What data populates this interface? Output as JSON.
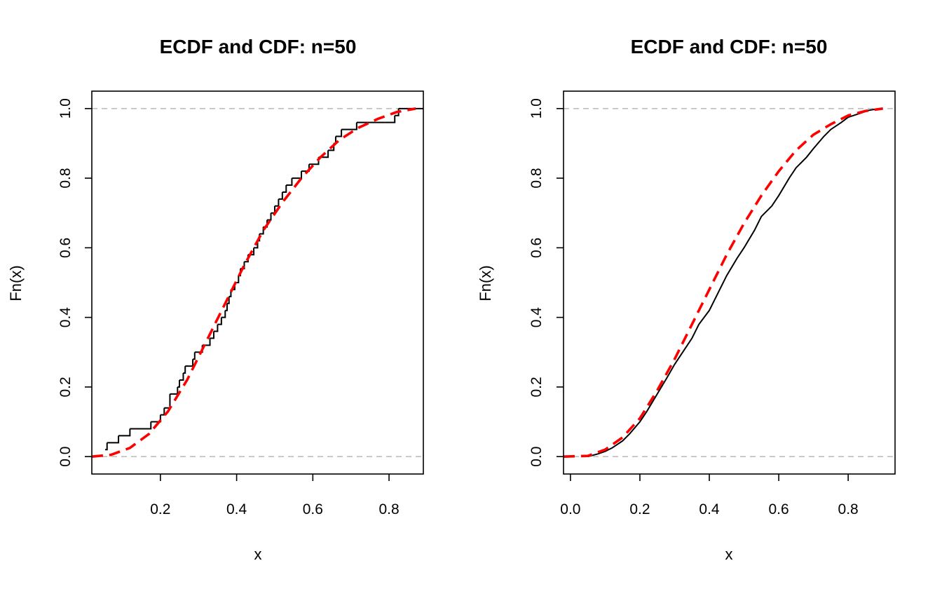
{
  "chart_data": [
    {
      "type": "line",
      "title": "ECDF and CDF: n=50",
      "xlabel": "x",
      "ylabel": "Fn(x)",
      "xlim": [
        0.02,
        0.89
      ],
      "ylim": [
        -0.05,
        1.05
      ],
      "xticks": [
        0.2,
        0.4,
        0.6,
        0.8
      ],
      "xtick_labels": [
        "0.2",
        "0.4",
        "0.6",
        "0.8"
      ],
      "yticks": [
        0.0,
        0.2,
        0.4,
        0.6,
        0.8,
        1.0
      ],
      "ytick_labels": [
        "0.0",
        "0.2",
        "0.4",
        "0.6",
        "0.8",
        "1.0"
      ],
      "reference_lines": [
        0,
        1
      ],
      "series": [
        {
          "kind": "ecdf",
          "color": "#000000",
          "x": [
            0.055,
            0.06,
            0.09,
            0.12,
            0.175,
            0.2,
            0.21,
            0.225,
            0.225,
            0.245,
            0.25,
            0.26,
            0.265,
            0.285,
            0.29,
            0.31,
            0.33,
            0.34,
            0.35,
            0.36,
            0.37,
            0.375,
            0.38,
            0.385,
            0.395,
            0.405,
            0.41,
            0.42,
            0.43,
            0.445,
            0.455,
            0.46,
            0.47,
            0.48,
            0.49,
            0.5,
            0.51,
            0.52,
            0.53,
            0.545,
            0.57,
            0.59,
            0.615,
            0.64,
            0.655,
            0.66,
            0.675,
            0.715,
            0.815,
            0.825
          ],
          "y": [
            0.02,
            0.04,
            0.06,
            0.08,
            0.1,
            0.12,
            0.14,
            0.16,
            0.18,
            0.2,
            0.22,
            0.24,
            0.26,
            0.28,
            0.3,
            0.32,
            0.34,
            0.36,
            0.38,
            0.4,
            0.42,
            0.44,
            0.46,
            0.48,
            0.5,
            0.52,
            0.54,
            0.56,
            0.58,
            0.6,
            0.62,
            0.64,
            0.66,
            0.68,
            0.7,
            0.72,
            0.74,
            0.76,
            0.78,
            0.8,
            0.82,
            0.84,
            0.86,
            0.88,
            0.9,
            0.92,
            0.94,
            0.96,
            0.98,
            1.0
          ]
        },
        {
          "kind": "cdf",
          "color": "#ff0000",
          "dash": true,
          "x": [
            0.02,
            0.07,
            0.12,
            0.17,
            0.22,
            0.27,
            0.32,
            0.37,
            0.42,
            0.47,
            0.52,
            0.57,
            0.62,
            0.67,
            0.72,
            0.77,
            0.82,
            0.87
          ],
          "y": [
            0.0,
            0.005,
            0.025,
            0.065,
            0.13,
            0.22,
            0.33,
            0.44,
            0.55,
            0.65,
            0.73,
            0.8,
            0.86,
            0.91,
            0.945,
            0.97,
            0.99,
            1.0
          ]
        }
      ]
    },
    {
      "type": "line",
      "title": "ECDF and CDF: n=50",
      "xlabel": "x",
      "ylabel": "Fn(x)",
      "xlim": [
        -0.02,
        0.935
      ],
      "ylim": [
        -0.05,
        1.05
      ],
      "xticks": [
        0.0,
        0.2,
        0.4,
        0.6,
        0.8
      ],
      "xtick_labels": [
        "0.0",
        "0.2",
        "0.4",
        "0.6",
        "0.8"
      ],
      "yticks": [
        0.0,
        0.2,
        0.4,
        0.6,
        0.8,
        1.0
      ],
      "ytick_labels": [
        "0.0",
        "0.2",
        "0.4",
        "0.6",
        "0.8",
        "1.0"
      ],
      "reference_lines": [
        0,
        1
      ],
      "series": [
        {
          "kind": "ecdf-smooth",
          "color": "#000000",
          "x": [
            0.05,
            0.08,
            0.1,
            0.12,
            0.15,
            0.17,
            0.2,
            0.22,
            0.25,
            0.28,
            0.3,
            0.33,
            0.35,
            0.37,
            0.4,
            0.43,
            0.45,
            0.48,
            0.5,
            0.53,
            0.55,
            0.58,
            0.6,
            0.63,
            0.65,
            0.68,
            0.7,
            0.73,
            0.75,
            0.78,
            0.8,
            0.83,
            0.86,
            0.89
          ],
          "y": [
            0.0,
            0.008,
            0.015,
            0.025,
            0.045,
            0.065,
            0.1,
            0.13,
            0.18,
            0.23,
            0.265,
            0.31,
            0.34,
            0.38,
            0.42,
            0.48,
            0.52,
            0.57,
            0.6,
            0.65,
            0.69,
            0.72,
            0.75,
            0.8,
            0.83,
            0.86,
            0.885,
            0.92,
            0.94,
            0.96,
            0.975,
            0.985,
            0.995,
            1.0
          ]
        },
        {
          "kind": "cdf",
          "color": "#ff0000",
          "dash": true,
          "x": [
            -0.02,
            0.05,
            0.1,
            0.15,
            0.2,
            0.25,
            0.3,
            0.35,
            0.4,
            0.45,
            0.5,
            0.55,
            0.6,
            0.65,
            0.7,
            0.75,
            0.8,
            0.85,
            0.9
          ],
          "y": [
            0.0,
            0.002,
            0.02,
            0.055,
            0.11,
            0.19,
            0.28,
            0.38,
            0.48,
            0.58,
            0.67,
            0.75,
            0.82,
            0.88,
            0.925,
            0.955,
            0.98,
            0.993,
            1.0
          ]
        }
      ]
    }
  ]
}
